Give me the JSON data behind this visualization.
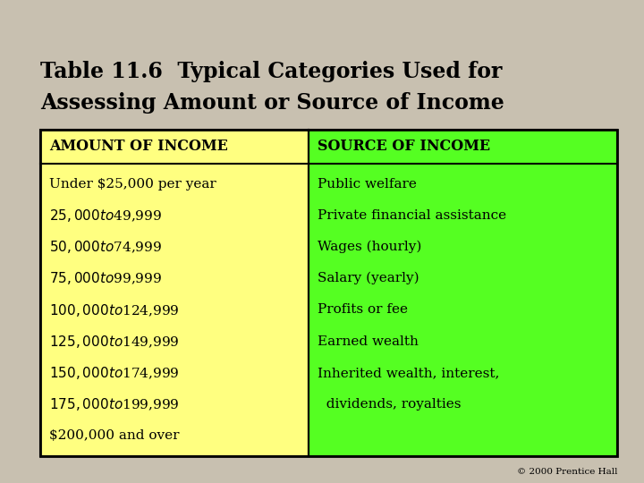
{
  "title_line1": "Table 11.6  Typical Categories Used for",
  "title_line2": "Assessing Amount or Source of Income",
  "col1_header": "AMOUNT OF INCOME",
  "col2_header": "SOURCE OF INCOME",
  "col1_items": [
    "Under $25,000 per year",
    "$25,000 to $49,999",
    "$50,000 to $74,999",
    "$75,000 to $99,999",
    "$100,000 to $124,999",
    "$125,000 to $149,999",
    "$150,000 to $174,999",
    "$175,000 to $199,999",
    "$200,000 and over"
  ],
  "col2_items": [
    "Public welfare",
    "Private financial assistance",
    "Wages (hourly)",
    "Salary (yearly)",
    "Profits or fee",
    "Earned wealth",
    "Inherited wealth, interest,",
    "  dividends, royalties",
    ""
  ],
  "col1_bg": "#FFFF80",
  "col2_bg": "#55FF22",
  "border_color": "#000000",
  "title_color": "#000000",
  "header_fontsize": 11.5,
  "item_fontsize": 11,
  "title_fontsize": 17,
  "copyright": "© 2000 Prentice Hall",
  "fig_bg": "#C8C0B0"
}
